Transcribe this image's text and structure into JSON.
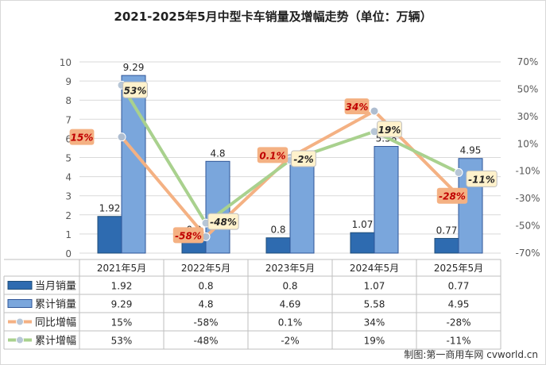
{
  "chart_data": {
    "type": "bar",
    "title": "2021-2025年5月中型卡车销量及增幅走势（单位：万辆）",
    "categories": [
      "2021年5月",
      "2022年5月",
      "2023年5月",
      "2024年5月",
      "2025年5月"
    ],
    "left_axis": {
      "min": 0,
      "max": 10,
      "ticks": [
        "0",
        "1",
        "2",
        "3",
        "4",
        "5",
        "6",
        "7",
        "8",
        "9",
        "10"
      ]
    },
    "right_axis": {
      "min": -70,
      "max": 70,
      "ticks": [
        "70%",
        "50%",
        "30%",
        "10%",
        "-10%",
        "-30%",
        "-50%",
        "-70%"
      ]
    },
    "series": [
      {
        "name": "当月销量",
        "kind": "bar",
        "axis": "left",
        "values": [
          1.92,
          0.8,
          0.8,
          1.07,
          0.77
        ],
        "labels": [
          "1.92",
          "0.8",
          "0.8",
          "1.07",
          "0.77"
        ],
        "color": "#2e6bb0"
      },
      {
        "name": "累计销量",
        "kind": "bar",
        "axis": "left",
        "values": [
          9.29,
          4.8,
          4.69,
          5.58,
          4.95
        ],
        "labels": [
          "9.29",
          "4.8",
          "4.69",
          "5.58",
          "4.95"
        ],
        "color": "#7aa6dc"
      },
      {
        "name": "同比增幅",
        "kind": "line",
        "axis": "right",
        "values": [
          15,
          -58,
          0.1,
          34,
          -28
        ],
        "labels": [
          "15%",
          "-58%",
          "0.1%",
          "34%",
          "-28%"
        ],
        "color": "#f4b183"
      },
      {
        "name": "累计增幅",
        "kind": "line",
        "axis": "right",
        "values": [
          53,
          -48,
          -2,
          19,
          -11
        ],
        "labels": [
          "53%",
          "-48%",
          "-2%",
          "19%",
          "-11%"
        ],
        "color": "#a9d18e"
      }
    ],
    "grid": true,
    "legend": "data-table"
  },
  "source": "制图:第一商用车网 cvworld.cn"
}
